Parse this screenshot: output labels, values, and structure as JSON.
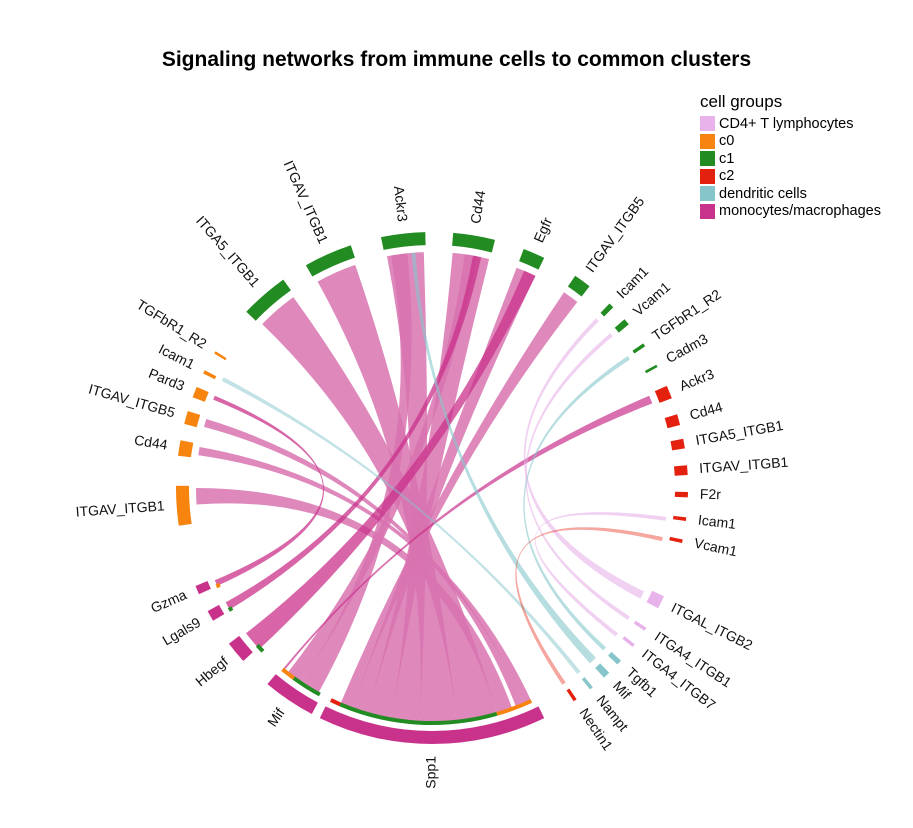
{
  "title": "Signaling networks from immune cells to common clusters",
  "legend": {
    "title": "cell groups",
    "items": [
      {
        "label": "CD4+ T lymphocytes",
        "color": "#e8b2ea"
      },
      {
        "label": "c0",
        "color": "#f6840f"
      },
      {
        "label": "c1",
        "color": "#228b22"
      },
      {
        "label": "c2",
        "color": "#e4200f"
      },
      {
        "label": "dendritic cells",
        "color": "#86c6cb"
      },
      {
        "label": "monocytes/macrophages",
        "color": "#c9328b"
      }
    ]
  },
  "chart_data": {
    "type": "chord",
    "sectors": [
      {
        "label": "Spp1",
        "group": "monocytes/macrophages",
        "ang": 180,
        "span": 52
      },
      {
        "label": "Nectin1",
        "group": "c2",
        "ang": 146,
        "span": 0.8
      },
      {
        "label": "Nampt",
        "group": "dendritic cells",
        "ang": 141.5,
        "span": 0.8
      },
      {
        "label": "Mif",
        "group": "dendritic cells",
        "ang": 137,
        "span": 1.6
      },
      {
        "label": "Tgfb1",
        "group": "dendritic cells",
        "ang": 133,
        "span": 1.2
      },
      {
        "label": "ITGA4_ITGB7",
        "group": "CD4+ T lymphocytes",
        "ang": 128,
        "span": 0.8
      },
      {
        "label": "ITGA4_ITGB1",
        "group": "CD4+ T lymphocytes",
        "ang": 123.5,
        "span": 0.8
      },
      {
        "label": "ITGAL_ITGB2",
        "group": "CD4+ T lymphocytes",
        "ang": 116.5,
        "span": 3
      },
      {
        "label": "Vcam1",
        "group": "c2",
        "ang": 102,
        "span": 0.8
      },
      {
        "label": "Icam1",
        "group": "c2",
        "ang": 97,
        "span": 0.8
      },
      {
        "label": "F2r",
        "group": "c2",
        "ang": 91.5,
        "span": 1.2
      },
      {
        "label": "ITGAV_ITGB1",
        "group": "c2",
        "ang": 86,
        "span": 2.2
      },
      {
        "label": "ITGA5_ITGB1",
        "group": "c2",
        "ang": 80,
        "span": 2.2
      },
      {
        "label": "Cd44",
        "group": "c2",
        "ang": 74.5,
        "span": 2.5
      },
      {
        "label": "Ackr3",
        "group": "c2",
        "ang": 68,
        "span": 3
      },
      {
        "label": "Cadm3",
        "group": "c1",
        "ang": 61.5,
        "span": 0.6
      },
      {
        "label": "TGFbR1_R2",
        "group": "c1",
        "ang": 56,
        "span": 0.8
      },
      {
        "label": "Vcam1",
        "group": "c1",
        "ang": 49.5,
        "span": 1.5
      },
      {
        "label": "Icam1",
        "group": "c1",
        "ang": 44.5,
        "span": 1.2
      },
      {
        "label": "ITGAV_ITGB5",
        "group": "c1",
        "ang": 36,
        "span": 4
      },
      {
        "label": "Egfr",
        "group": "c1",
        "ang": 23.5,
        "span": 5
      },
      {
        "label": "Cd44",
        "group": "c1",
        "ang": 9.5,
        "span": 9.5
      },
      {
        "label": "Ackr3",
        "group": "c1",
        "ang": -6.5,
        "span": 10
      },
      {
        "label": "ITGAV_ITGB1",
        "group": "c1",
        "ang": -24,
        "span": 11
      },
      {
        "label": "ITGA5_ITGB1",
        "group": "c1",
        "ang": -41,
        "span": 11
      },
      {
        "label": "TGFbR1_R2",
        "group": "c0",
        "ang": -58,
        "span": 0.6
      },
      {
        "label": "Icam1",
        "group": "c0",
        "ang": -63,
        "span": 0.8
      },
      {
        "label": "Pard3",
        "group": "c0",
        "ang": -68,
        "span": 2.5
      },
      {
        "label": "ITGAV_ITGB5",
        "group": "c0",
        "ang": -74,
        "span": 3
      },
      {
        "label": "Cd44",
        "group": "c0",
        "ang": -81,
        "span": 3.5
      },
      {
        "label": "ITGAV_ITGB1",
        "group": "c0",
        "ang": -94,
        "span": 9
      },
      {
        "label": "Gzma",
        "group": "monocytes/macrophages",
        "ang": -113.5,
        "span": 2
      },
      {
        "label": "Lgals9",
        "group": "monocytes/macrophages",
        "ang": -120,
        "span": 2.5
      },
      {
        "label": "Hbegf",
        "group": "monocytes/macrophages",
        "ang": -130,
        "span": 5
      },
      {
        "label": "Mif",
        "group": "monocytes/macrophages",
        "ang": -146,
        "span": 12
      }
    ]
  }
}
